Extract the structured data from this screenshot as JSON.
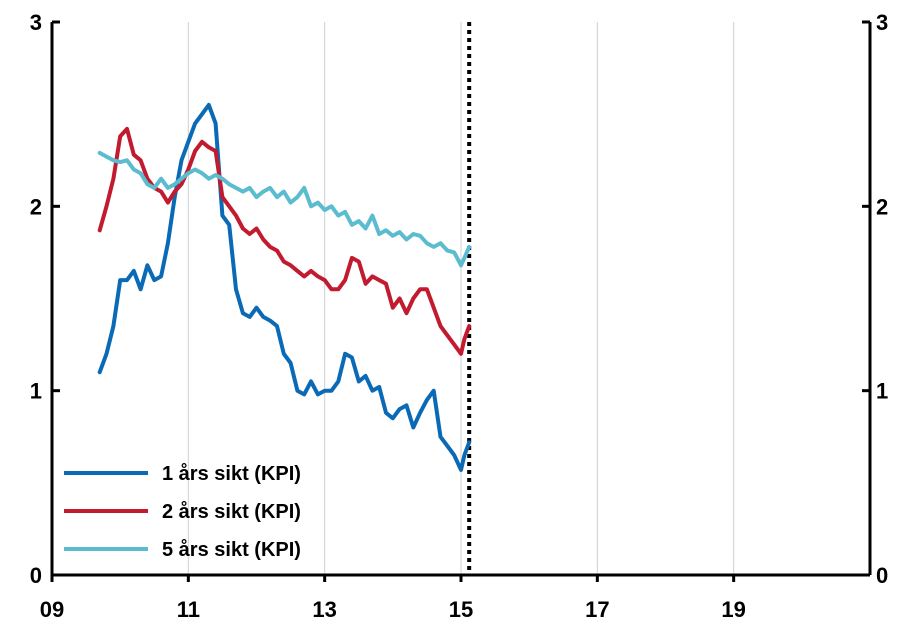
{
  "chart_data": {
    "type": "line",
    "title": "",
    "xlabel": "",
    "ylabel": "",
    "xlim": [
      9,
      21
    ],
    "ylim": [
      0,
      3
    ],
    "x_ticks": [
      9,
      11,
      13,
      15,
      17,
      19
    ],
    "x_tick_labels": [
      "09",
      "11",
      "13",
      "15",
      "17",
      "19"
    ],
    "y_ticks": [
      0,
      1,
      2,
      3
    ],
    "y_tick_labels_left": [
      "0",
      "1",
      "2",
      "3"
    ],
    "y_tick_labels_right": [
      "0",
      "1",
      "2",
      "3"
    ],
    "grid": "vertical",
    "marker_line_x": 15.12,
    "marker_line_style": "dotted",
    "legend": {
      "placement": "bottom-left"
    },
    "series": [
      {
        "name": "1 års sikt (KPI)",
        "color": "#0a6ab6",
        "x": [
          9.7,
          9.8,
          9.9,
          10.0,
          10.1,
          10.2,
          10.3,
          10.4,
          10.5,
          10.6,
          10.7,
          10.8,
          10.9,
          11.0,
          11.1,
          11.2,
          11.3,
          11.4,
          11.5,
          11.6,
          11.7,
          11.8,
          11.9,
          12.0,
          12.1,
          12.2,
          12.3,
          12.4,
          12.5,
          12.6,
          12.7,
          12.8,
          12.9,
          13.0,
          13.1,
          13.2,
          13.3,
          13.4,
          13.5,
          13.6,
          13.7,
          13.8,
          13.9,
          14.0,
          14.1,
          14.2,
          14.3,
          14.4,
          14.5,
          14.6,
          14.7,
          14.8,
          14.9,
          15.0,
          15.05,
          15.12
        ],
        "values": [
          1.1,
          1.2,
          1.35,
          1.6,
          1.6,
          1.65,
          1.55,
          1.68,
          1.6,
          1.62,
          1.8,
          2.05,
          2.25,
          2.35,
          2.45,
          2.5,
          2.55,
          2.45,
          1.95,
          1.9,
          1.55,
          1.42,
          1.4,
          1.45,
          1.4,
          1.38,
          1.35,
          1.2,
          1.15,
          1.0,
          0.98,
          1.05,
          0.98,
          1.0,
          1.0,
          1.05,
          1.2,
          1.18,
          1.05,
          1.08,
          1.0,
          1.02,
          0.88,
          0.85,
          0.9,
          0.92,
          0.8,
          0.88,
          0.95,
          1.0,
          0.75,
          0.7,
          0.65,
          0.57,
          0.65,
          0.72
        ]
      },
      {
        "name": "2 års sikt (KPI)",
        "color": "#c21a2e",
        "x": [
          9.7,
          9.8,
          9.9,
          10.0,
          10.1,
          10.2,
          10.3,
          10.4,
          10.5,
          10.6,
          10.7,
          10.8,
          10.9,
          11.0,
          11.1,
          11.2,
          11.3,
          11.4,
          11.5,
          11.6,
          11.7,
          11.8,
          11.9,
          12.0,
          12.1,
          12.2,
          12.3,
          12.4,
          12.5,
          12.6,
          12.7,
          12.8,
          12.9,
          13.0,
          13.1,
          13.2,
          13.3,
          13.4,
          13.5,
          13.6,
          13.7,
          13.8,
          13.9,
          14.0,
          14.1,
          14.2,
          14.3,
          14.4,
          14.5,
          14.6,
          14.7,
          14.8,
          14.9,
          15.0,
          15.05,
          15.12
        ],
        "values": [
          1.87,
          2.0,
          2.15,
          2.38,
          2.42,
          2.28,
          2.25,
          2.15,
          2.1,
          2.08,
          2.02,
          2.08,
          2.12,
          2.2,
          2.3,
          2.35,
          2.32,
          2.3,
          2.05,
          2.0,
          1.95,
          1.88,
          1.85,
          1.88,
          1.82,
          1.78,
          1.76,
          1.7,
          1.68,
          1.65,
          1.62,
          1.65,
          1.62,
          1.6,
          1.55,
          1.55,
          1.6,
          1.72,
          1.7,
          1.58,
          1.62,
          1.6,
          1.58,
          1.45,
          1.5,
          1.42,
          1.5,
          1.55,
          1.55,
          1.45,
          1.35,
          1.3,
          1.25,
          1.2,
          1.28,
          1.35
        ]
      },
      {
        "name": "5 års sikt (KPI)",
        "color": "#5bbccf",
        "x": [
          9.7,
          9.8,
          9.9,
          10.0,
          10.1,
          10.2,
          10.3,
          10.4,
          10.5,
          10.6,
          10.7,
          10.8,
          10.9,
          11.0,
          11.1,
          11.2,
          11.3,
          11.4,
          11.5,
          11.6,
          11.7,
          11.8,
          11.9,
          12.0,
          12.1,
          12.2,
          12.3,
          12.4,
          12.5,
          12.6,
          12.7,
          12.8,
          12.9,
          13.0,
          13.1,
          13.2,
          13.3,
          13.4,
          13.5,
          13.6,
          13.7,
          13.8,
          13.9,
          14.0,
          14.1,
          14.2,
          14.3,
          14.4,
          14.5,
          14.6,
          14.7,
          14.8,
          14.9,
          15.0,
          15.05,
          15.12
        ],
        "values": [
          2.29,
          2.27,
          2.25,
          2.24,
          2.25,
          2.2,
          2.18,
          2.12,
          2.1,
          2.15,
          2.1,
          2.12,
          2.15,
          2.18,
          2.2,
          2.18,
          2.15,
          2.17,
          2.15,
          2.12,
          2.1,
          2.08,
          2.1,
          2.05,
          2.08,
          2.1,
          2.05,
          2.08,
          2.02,
          2.05,
          2.1,
          2.0,
          2.02,
          1.98,
          2.0,
          1.95,
          1.97,
          1.9,
          1.92,
          1.88,
          1.95,
          1.85,
          1.87,
          1.84,
          1.86,
          1.82,
          1.85,
          1.84,
          1.8,
          1.78,
          1.8,
          1.76,
          1.75,
          1.68,
          1.72,
          1.78
        ]
      }
    ]
  }
}
